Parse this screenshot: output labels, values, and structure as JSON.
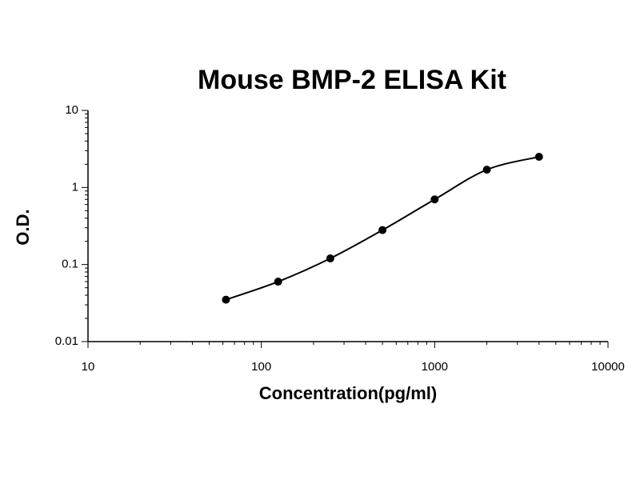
{
  "chart_data": {
    "type": "scatter",
    "title": "Mouse BMP-2 ELISA Kit",
    "x_label": "Concentration(pg/ml)",
    "y_label": "O.D.",
    "x": [
      62.5,
      125,
      250,
      500,
      1000,
      2000,
      4000
    ],
    "series": [
      {
        "color": "#000000",
        "values": [
          0.035,
          0.06,
          0.12,
          0.28,
          0.7,
          1.7,
          2.5
        ]
      }
    ],
    "xlim": [
      10,
      10000
    ],
    "xticks": [
      10,
      100,
      1000,
      10000
    ],
    "ylim": [
      0.01,
      10
    ],
    "yticks": [
      0.01,
      0.1,
      1,
      10
    ],
    "xscale": "log",
    "yscale": "log",
    "curve": true,
    "grid": false
  }
}
